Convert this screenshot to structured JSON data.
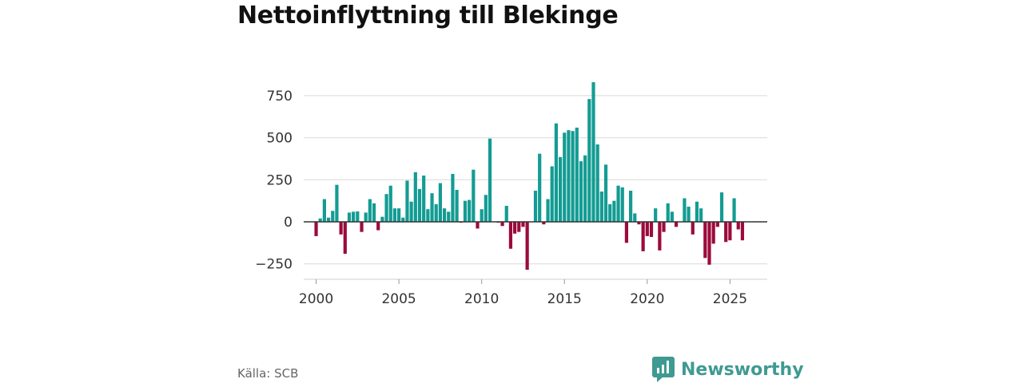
{
  "chart_data": {
    "type": "bar",
    "title": "Nettoinflyttning till Blekinge",
    "xlabel": "",
    "ylabel": "",
    "xlim": [
      1999.25,
      2027.25
    ],
    "ylim": [
      -290,
      850
    ],
    "y_ticks": [
      -250,
      0,
      250,
      500,
      750
    ],
    "y_tick_labels": [
      "−250",
      "0",
      "250",
      "500",
      "750"
    ],
    "x_ticks": [
      2000,
      2005,
      2010,
      2015,
      2020,
      2025
    ],
    "x_tick_labels": [
      "2000",
      "2005",
      "2010",
      "2015",
      "2020",
      "2025"
    ],
    "series": [
      {
        "name": "Nettoinflyttning",
        "x": [
          2000.0,
          2000.25,
          2000.5,
          2000.75,
          2001.0,
          2001.25,
          2001.5,
          2001.75,
          2002.0,
          2002.25,
          2002.5,
          2002.75,
          2003.0,
          2003.25,
          2003.5,
          2003.75,
          2004.0,
          2004.25,
          2004.5,
          2004.75,
          2005.0,
          2005.25,
          2005.5,
          2005.75,
          2006.0,
          2006.25,
          2006.5,
          2006.75,
          2007.0,
          2007.25,
          2007.5,
          2007.75,
          2008.0,
          2008.25,
          2008.5,
          2008.75,
          2009.0,
          2009.25,
          2009.5,
          2009.75,
          2010.0,
          2010.25,
          2010.5,
          2010.75,
          2011.0,
          2011.25,
          2011.5,
          2011.75,
          2012.0,
          2012.25,
          2012.5,
          2012.75,
          2013.0,
          2013.25,
          2013.5,
          2013.75,
          2014.0,
          2014.25,
          2014.5,
          2014.75,
          2015.0,
          2015.25,
          2015.5,
          2015.75,
          2016.0,
          2016.25,
          2016.5,
          2016.75,
          2017.0,
          2017.25,
          2017.5,
          2017.75,
          2018.0,
          2018.25,
          2018.5,
          2018.75,
          2019.0,
          2019.25,
          2019.5,
          2019.75,
          2020.0,
          2020.25,
          2020.5,
          2020.75,
          2021.0,
          2021.25,
          2021.5,
          2021.75,
          2022.0,
          2022.25,
          2022.5,
          2022.75,
          2023.0,
          2023.25,
          2023.5,
          2023.75,
          2024.0,
          2024.25,
          2024.5,
          2024.75,
          2025.0,
          2025.25,
          2025.5,
          2025.75
        ],
        "values": [
          -85,
          20,
          135,
          25,
          65,
          220,
          -75,
          -190,
          55,
          60,
          62,
          -60,
          55,
          135,
          110,
          -50,
          30,
          165,
          215,
          80,
          80,
          25,
          245,
          120,
          295,
          195,
          275,
          75,
          170,
          105,
          230,
          80,
          60,
          285,
          190,
          -5,
          125,
          130,
          310,
          -40,
          75,
          160,
          495,
          0,
          -5,
          -25,
          95,
          -160,
          -70,
          -60,
          -30,
          -285,
          0,
          185,
          405,
          -15,
          135,
          330,
          585,
          385,
          530,
          545,
          540,
          560,
          360,
          395,
          730,
          830,
          460,
          180,
          340,
          105,
          125,
          215,
          205,
          -125,
          185,
          50,
          -15,
          -175,
          -85,
          -90,
          80,
          -170,
          -60,
          110,
          60,
          -30,
          0,
          140,
          90,
          -75,
          120,
          80,
          -215,
          -255,
          -130,
          -30,
          175,
          -120,
          -110,
          140,
          -45,
          -110
        ],
        "positive_color": "#139c93",
        "negative_color": "#9b0b3c"
      }
    ]
  },
  "footer": {
    "source": "Källa: SCB",
    "brand": "Newsworthy",
    "brand_color": "#3f9a92",
    "brand_icon": "bar-chart-speech-bubble-icon"
  }
}
